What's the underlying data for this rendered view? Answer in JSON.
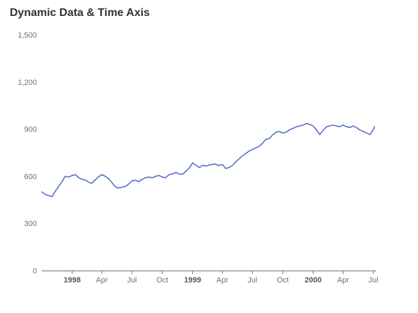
{
  "chart_data": {
    "type": "line",
    "title": "Dynamic Data & Time Axis",
    "xlabel": "",
    "ylabel": "",
    "x_range": [
      "1997-10-01",
      "2000-07-10"
    ],
    "ylim": [
      0,
      1500
    ],
    "y_ticks": [
      0,
      300,
      600,
      900,
      1200,
      1500
    ],
    "y_tick_labels": [
      "0",
      "300",
      "600",
      "900",
      "1,200",
      "1,500"
    ],
    "x_ticks": [
      {
        "date": "1998-01-01",
        "label": "1998",
        "major": true
      },
      {
        "date": "1998-04-01",
        "label": "Apr",
        "major": false
      },
      {
        "date": "1998-07-01",
        "label": "Jul",
        "major": false
      },
      {
        "date": "1998-10-01",
        "label": "Oct",
        "major": false
      },
      {
        "date": "1999-01-01",
        "label": "1999",
        "major": true
      },
      {
        "date": "1999-04-01",
        "label": "Apr",
        "major": false
      },
      {
        "date": "1999-07-01",
        "label": "Jul",
        "major": false
      },
      {
        "date": "1999-10-01",
        "label": "Oct",
        "major": false
      },
      {
        "date": "2000-01-01",
        "label": "2000",
        "major": true
      },
      {
        "date": "2000-04-01",
        "label": "Apr",
        "major": false
      },
      {
        "date": "2000-07-01",
        "label": "Jul",
        "major": false
      }
    ],
    "grid": false,
    "legend": "none",
    "line_color": "#5470c6",
    "series": [
      {
        "x": [
          "1997-10-01",
          "1997-10-11",
          "1997-10-21",
          "1997-11-01",
          "1997-11-11",
          "1997-11-21",
          "1997-12-01",
          "1997-12-11",
          "1997-12-21",
          "1998-01-01",
          "1998-01-11",
          "1998-01-21",
          "1998-02-01",
          "1998-02-11",
          "1998-02-21",
          "1998-03-01",
          "1998-03-11",
          "1998-03-21",
          "1998-04-01",
          "1998-04-11",
          "1998-04-21",
          "1998-05-01",
          "1998-05-11",
          "1998-05-21",
          "1998-06-01",
          "1998-06-11",
          "1998-06-21",
          "1998-07-01",
          "1998-07-11",
          "1998-07-21",
          "1998-08-01",
          "1998-08-11",
          "1998-08-21",
          "1998-09-01",
          "1998-09-11",
          "1998-09-21",
          "1998-10-01",
          "1998-10-11",
          "1998-10-21",
          "1998-11-01",
          "1998-11-11",
          "1998-11-21",
          "1998-12-01",
          "1998-12-11",
          "1998-12-21",
          "1999-01-01",
          "1999-01-11",
          "1999-01-21",
          "1999-02-01",
          "1999-02-11",
          "1999-02-21",
          "1999-03-01",
          "1999-03-11",
          "1999-03-21",
          "1999-04-01",
          "1999-04-11",
          "1999-04-21",
          "1999-05-01",
          "1999-05-11",
          "1999-05-21",
          "1999-06-01",
          "1999-06-11",
          "1999-06-21",
          "1999-07-01",
          "1999-07-11",
          "1999-07-21",
          "1999-08-01",
          "1999-08-11",
          "1999-08-21",
          "1999-09-01",
          "1999-09-11",
          "1999-09-21",
          "1999-10-01",
          "1999-10-11",
          "1999-10-21",
          "1999-11-01",
          "1999-11-11",
          "1999-11-21",
          "1999-12-01",
          "1999-12-11",
          "1999-12-21",
          "2000-01-01",
          "2000-01-11",
          "2000-01-21",
          "2000-02-01",
          "2000-02-11",
          "2000-02-21",
          "2000-03-01",
          "2000-03-11",
          "2000-03-21",
          "2000-04-01",
          "2000-04-11",
          "2000-04-21",
          "2000-05-01",
          "2000-05-11",
          "2000-05-21",
          "2000-06-01",
          "2000-06-11",
          "2000-06-21",
          "2000-07-01",
          "2000-07-05"
        ],
        "values": [
          500,
          485,
          478,
          470,
          505,
          535,
          565,
          600,
          595,
          605,
          610,
          590,
          580,
          575,
          560,
          555,
          575,
          595,
          610,
          600,
          585,
          560,
          535,
          525,
          530,
          535,
          550,
          570,
          575,
          565,
          580,
          590,
          595,
          590,
          600,
          605,
          595,
          590,
          610,
          615,
          625,
          615,
          612,
          630,
          650,
          685,
          670,
          655,
          670,
          665,
          672,
          675,
          678,
          668,
          675,
          650,
          655,
          668,
          690,
          710,
          730,
          745,
          760,
          770,
          780,
          790,
          810,
          835,
          840,
          865,
          880,
          885,
          875,
          880,
          895,
          905,
          915,
          920,
          925,
          935,
          930,
          920,
          895,
          865,
          895,
          915,
          920,
          925,
          920,
          915,
          925,
          915,
          910,
          920,
          910,
          895,
          885,
          875,
          865,
          895,
          915
        ]
      }
    ]
  }
}
